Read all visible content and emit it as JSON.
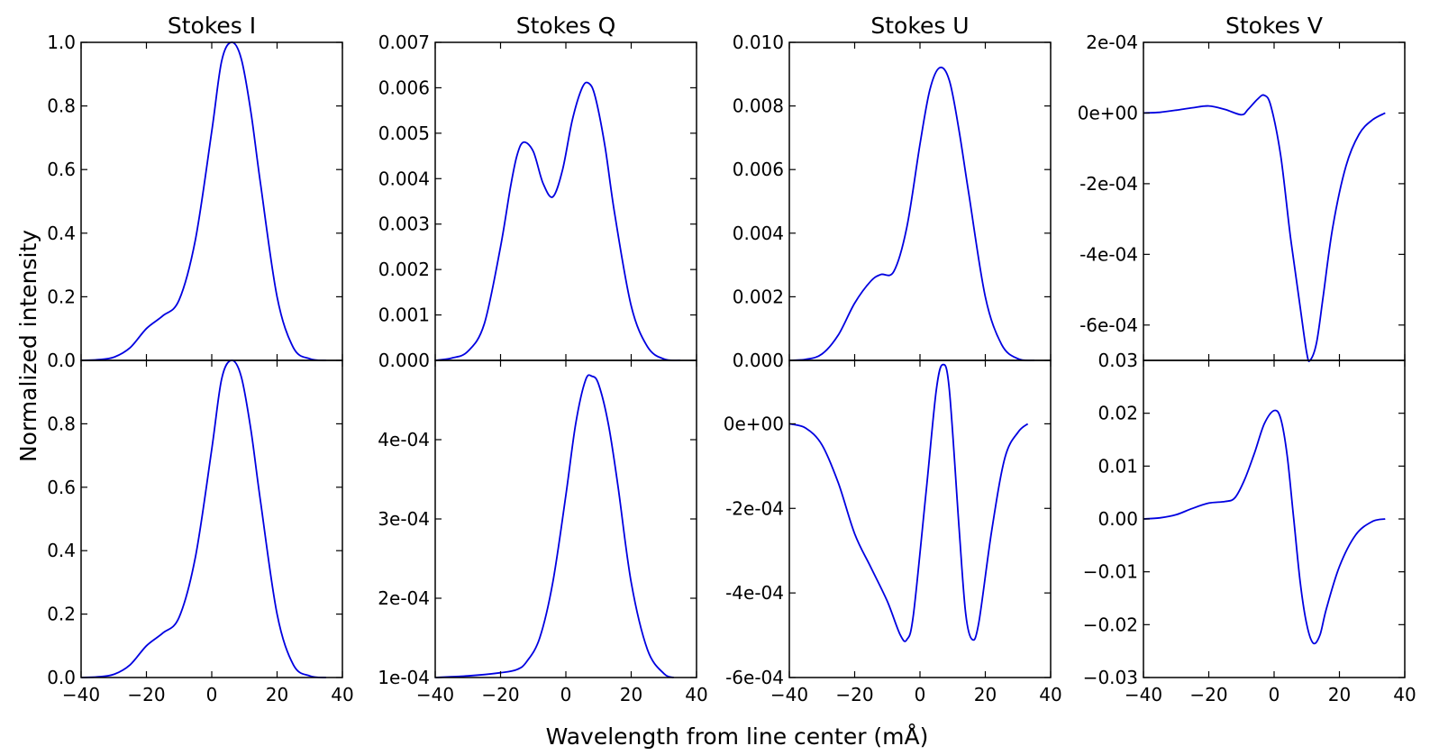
{
  "figure": {
    "xlabel": "Wavelength from line center (mÅ)",
    "ylabel": "Normalized intensity"
  },
  "chart_data": [
    {
      "type": "line",
      "row": "top",
      "col": 0,
      "title": "Stokes I",
      "xlim": [
        -40,
        40
      ],
      "ylim": [
        0,
        1.0
      ],
      "yticks": [
        "0.0",
        "0.2",
        "0.4",
        "0.6",
        "0.8",
        "1.0"
      ],
      "yticks_values": [
        0,
        0.2,
        0.4,
        0.6,
        0.8,
        1.0
      ],
      "xticks_values": [
        -40,
        -20,
        0,
        20,
        40
      ],
      "xticks": [],
      "series": [
        {
          "color": "#0000e0",
          "x": [
            -40,
            -35,
            -30,
            -25,
            -20,
            -15,
            -10,
            -5,
            0,
            3,
            6,
            9,
            12,
            15,
            20,
            25,
            30,
            35
          ],
          "y": [
            0,
            0.002,
            0.01,
            0.04,
            0.1,
            0.14,
            0.19,
            0.38,
            0.72,
            0.94,
            1.0,
            0.95,
            0.78,
            0.55,
            0.2,
            0.04,
            0.005,
            0
          ]
        }
      ]
    },
    {
      "type": "line",
      "row": "top",
      "col": 1,
      "title": "Stokes Q",
      "xlim": [
        -40,
        40
      ],
      "ylim": [
        0,
        0.007
      ],
      "yticks": [
        "0.000",
        "0.001",
        "0.002",
        "0.003",
        "0.004",
        "0.005",
        "0.006",
        "0.007"
      ],
      "yticks_values": [
        0,
        0.001,
        0.002,
        0.003,
        0.004,
        0.005,
        0.006,
        0.007
      ],
      "xticks_values": [
        -40,
        -20,
        0,
        20,
        40
      ],
      "xticks": [],
      "series": [
        {
          "color": "#0000e0",
          "x": [
            -40,
            -35,
            -30,
            -25,
            -20,
            -17,
            -15,
            -13,
            -10,
            -7,
            -4,
            -1,
            2,
            5,
            7,
            9,
            12,
            15,
            20,
            25,
            30,
            35
          ],
          "y": [
            0,
            5e-05,
            0.0002,
            0.0008,
            0.0025,
            0.0038,
            0.0045,
            0.0048,
            0.0046,
            0.0039,
            0.0036,
            0.0042,
            0.0053,
            0.006,
            0.0061,
            0.0058,
            0.0047,
            0.0032,
            0.0012,
            0.0003,
            3e-05,
            0
          ]
        }
      ]
    },
    {
      "type": "line",
      "row": "top",
      "col": 2,
      "title": "Stokes U",
      "xlim": [
        -40,
        40
      ],
      "ylim": [
        0,
        0.01
      ],
      "yticks": [
        "0.000",
        "0.002",
        "0.004",
        "0.006",
        "0.008",
        "0.010"
      ],
      "yticks_values": [
        0,
        0.002,
        0.004,
        0.006,
        0.008,
        0.01
      ],
      "xticks_values": [
        -40,
        -20,
        0,
        20,
        40
      ],
      "xticks": [],
      "series": [
        {
          "color": "#0000e0",
          "x": [
            -40,
            -35,
            -30,
            -25,
            -20,
            -15,
            -12,
            -8,
            -4,
            0,
            3,
            6,
            9,
            12,
            15,
            20,
            25,
            30,
            35
          ],
          "y": [
            0,
            3e-05,
            0.0002,
            0.0008,
            0.0018,
            0.0025,
            0.0027,
            0.0028,
            0.0042,
            0.0068,
            0.0085,
            0.0092,
            0.0088,
            0.0072,
            0.0052,
            0.002,
            0.0005,
            5e-05,
            0
          ]
        }
      ]
    },
    {
      "type": "line",
      "row": "top",
      "col": 3,
      "title": "Stokes V",
      "xlim": [
        -40,
        40
      ],
      "ylim": [
        -0.0007,
        0.0002
      ],
      "yticks": [
        "-6e-04",
        "-4e-04",
        "-2e-04",
        "0e+00",
        "2e-04"
      ],
      "yticks_values": [
        -0.0006,
        -0.0004,
        -0.0002,
        0,
        0.0002
      ],
      "xticks_values": [
        -40,
        -20,
        0,
        20,
        40
      ],
      "xticks": [],
      "series": [
        {
          "color": "#0000e0",
          "x": [
            -40,
            -35,
            -30,
            -25,
            -20,
            -15,
            -10,
            -8,
            -5,
            -3,
            -1,
            2,
            5,
            8,
            10,
            11,
            13,
            15,
            18,
            22,
            26,
            30,
            34
          ],
          "y": [
            0,
            2e-06,
            8e-06,
            1.5e-05,
            2e-05,
            1e-05,
            -5e-06,
            1e-05,
            4e-05,
            5e-05,
            2e-05,
            -0.00012,
            -0.00035,
            -0.00055,
            -0.00068,
            -0.0007,
            -0.00065,
            -0.00052,
            -0.00032,
            -0.00015,
            -6e-05,
            -2e-05,
            0
          ]
        }
      ]
    },
    {
      "type": "line",
      "row": "bottom",
      "col": 0,
      "xlim": [
        -40,
        40
      ],
      "ylim": [
        0,
        1.0
      ],
      "yticks": [
        "0.0",
        "0.2",
        "0.4",
        "0.6",
        "0.8"
      ],
      "yticks_values": [
        0,
        0.2,
        0.4,
        0.6,
        0.8
      ],
      "xticks_values": [
        -40,
        -20,
        0,
        20,
        40
      ],
      "xticks": [
        "−40",
        "−20",
        "0",
        "20",
        "40"
      ],
      "series": [
        {
          "color": "#0000e0",
          "x": [
            -40,
            -35,
            -30,
            -25,
            -20,
            -15,
            -10,
            -5,
            0,
            3,
            6,
            9,
            12,
            15,
            20,
            25,
            30,
            35
          ],
          "y": [
            0,
            0.002,
            0.01,
            0.04,
            0.1,
            0.14,
            0.19,
            0.38,
            0.72,
            0.94,
            1.0,
            0.95,
            0.78,
            0.55,
            0.2,
            0.04,
            0.005,
            0
          ]
        }
      ]
    },
    {
      "type": "line",
      "row": "bottom",
      "col": 1,
      "xlim": [
        -40,
        40
      ],
      "ylim": [
        0.0001,
        0.0005
      ],
      "yticks": [
        "1e-04",
        "2e-04",
        "3e-04",
        "4e-04"
      ],
      "yticks_values": [
        0.0001,
        0.0002,
        0.0003,
        0.0004
      ],
      "xticks_values": [
        -40,
        -20,
        0,
        20,
        40
      ],
      "xticks": [
        "−40",
        "−20",
        "0",
        "20",
        "40"
      ],
      "series": [
        {
          "color": "#0000e0",
          "x": [
            -40,
            -30,
            -20,
            -15,
            -12,
            -8,
            -4,
            0,
            3,
            6,
            8,
            10,
            13,
            16,
            20,
            25,
            30,
            33
          ],
          "y": [
            0.0001,
            0.000102,
            0.000106,
            0.00011,
            0.00012,
            0.00015,
            0.00022,
            0.00033,
            0.00042,
            0.000475,
            0.00048,
            0.00047,
            0.00042,
            0.00034,
            0.00022,
            0.000135,
            0.000105,
            0.0001
          ]
        }
      ]
    },
    {
      "type": "line",
      "row": "bottom",
      "col": 2,
      "xlim": [
        -40,
        40
      ],
      "ylim": [
        -0.0006,
        0.00015
      ],
      "yticks": [
        "-6e-04",
        "-4e-04",
        "-2e-04",
        "0e+00"
      ],
      "yticks_values": [
        -0.0006,
        -0.0004,
        -0.0002,
        0
      ],
      "xticks_values": [
        -40,
        -20,
        0,
        20,
        40
      ],
      "xticks": [
        "−40",
        "−20",
        "0",
        "20",
        "40"
      ],
      "series": [
        {
          "color": "#0000e0",
          "x": [
            -40,
            -35,
            -30,
            -25,
            -20,
            -15,
            -10,
            -6,
            -4,
            -2,
            2,
            5,
            7,
            9,
            12,
            14,
            16,
            18,
            22,
            26,
            30,
            33
          ],
          "y": [
            0,
            -1e-05,
            -5e-05,
            -0.00014,
            -0.00026,
            -0.00034,
            -0.00042,
            -0.0005,
            -0.00051,
            -0.00045,
            -0.00015,
            8e-05,
            0.00014,
            8e-05,
            -0.00025,
            -0.00045,
            -0.00051,
            -0.00047,
            -0.00025,
            -8e-05,
            -2e-05,
            0
          ]
        }
      ]
    },
    {
      "type": "line",
      "row": "bottom",
      "col": 3,
      "xlim": [
        -40,
        40
      ],
      "ylim": [
        -0.03,
        0.03
      ],
      "yticks": [
        "−0.03",
        "−0.02",
        "−0.01",
        "0.00",
        "0.01",
        "0.02",
        "0.03"
      ],
      "yticks_values": [
        -0.03,
        -0.02,
        -0.01,
        0,
        0.01,
        0.02,
        0.03
      ],
      "xticks_values": [
        -40,
        -20,
        0,
        20,
        40
      ],
      "xticks": [
        "−40",
        "−20",
        "0",
        "20",
        "40"
      ],
      "series": [
        {
          "color": "#0000e0",
          "x": [
            -40,
            -35,
            -30,
            -25,
            -20,
            -15,
            -12,
            -9,
            -6,
            -3,
            0,
            2,
            4,
            6,
            8,
            10,
            12,
            14,
            16,
            20,
            25,
            30,
            34
          ],
          "y": [
            0,
            0.0002,
            0.0008,
            0.002,
            0.003,
            0.0033,
            0.004,
            0.0075,
            0.0125,
            0.018,
            0.0205,
            0.019,
            0.012,
            0.0,
            -0.012,
            -0.02,
            -0.0235,
            -0.022,
            -0.017,
            -0.009,
            -0.003,
            -0.0005,
            0
          ]
        }
      ]
    }
  ]
}
